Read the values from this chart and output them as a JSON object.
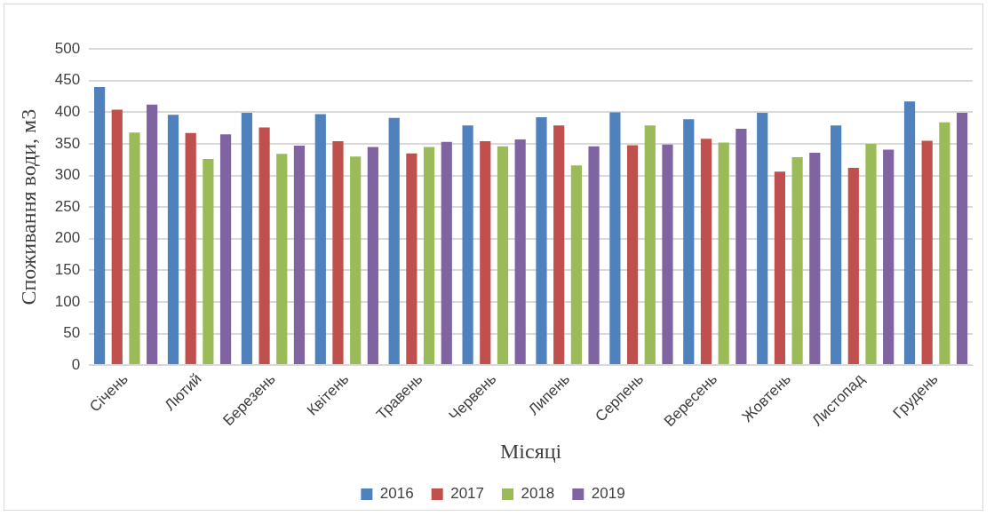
{
  "chart_data": {
    "type": "bar",
    "xlabel": "Місяці",
    "ylabel": "Споживання води, м3",
    "categories": [
      "Січень",
      "Лютий",
      "Березень",
      "Квітень",
      "Травень",
      "Червень",
      "Липень",
      "Серпень",
      "Вересень",
      "Жовтень",
      "Листопад",
      "Грудень"
    ],
    "series": [
      {
        "name": "2016",
        "color": "#4f81bd",
        "values": [
          440,
          396,
          399,
          397,
          391,
          379,
          392,
          400,
          389,
          399,
          379,
          417
        ]
      },
      {
        "name": "2017",
        "color": "#c0504d",
        "values": [
          404,
          367,
          376,
          354,
          335,
          354,
          379,
          348,
          358,
          306,
          312,
          355
        ]
      },
      {
        "name": "2018",
        "color": "#9bbb59",
        "values": [
          368,
          326,
          334,
          330,
          345,
          346,
          316,
          379,
          352,
          329,
          350,
          384
        ]
      },
      {
        "name": "2019",
        "color": "#8064a2",
        "values": [
          412,
          365,
          347,
          345,
          353,
          357,
          346,
          349,
          374,
          336,
          341,
          399
        ]
      }
    ],
    "ylim": [
      0,
      500
    ],
    "yticks": [
      0,
      50,
      100,
      150,
      200,
      250,
      300,
      350,
      400,
      450,
      500
    ],
    "grid": "y",
    "legend": "bottom"
  }
}
